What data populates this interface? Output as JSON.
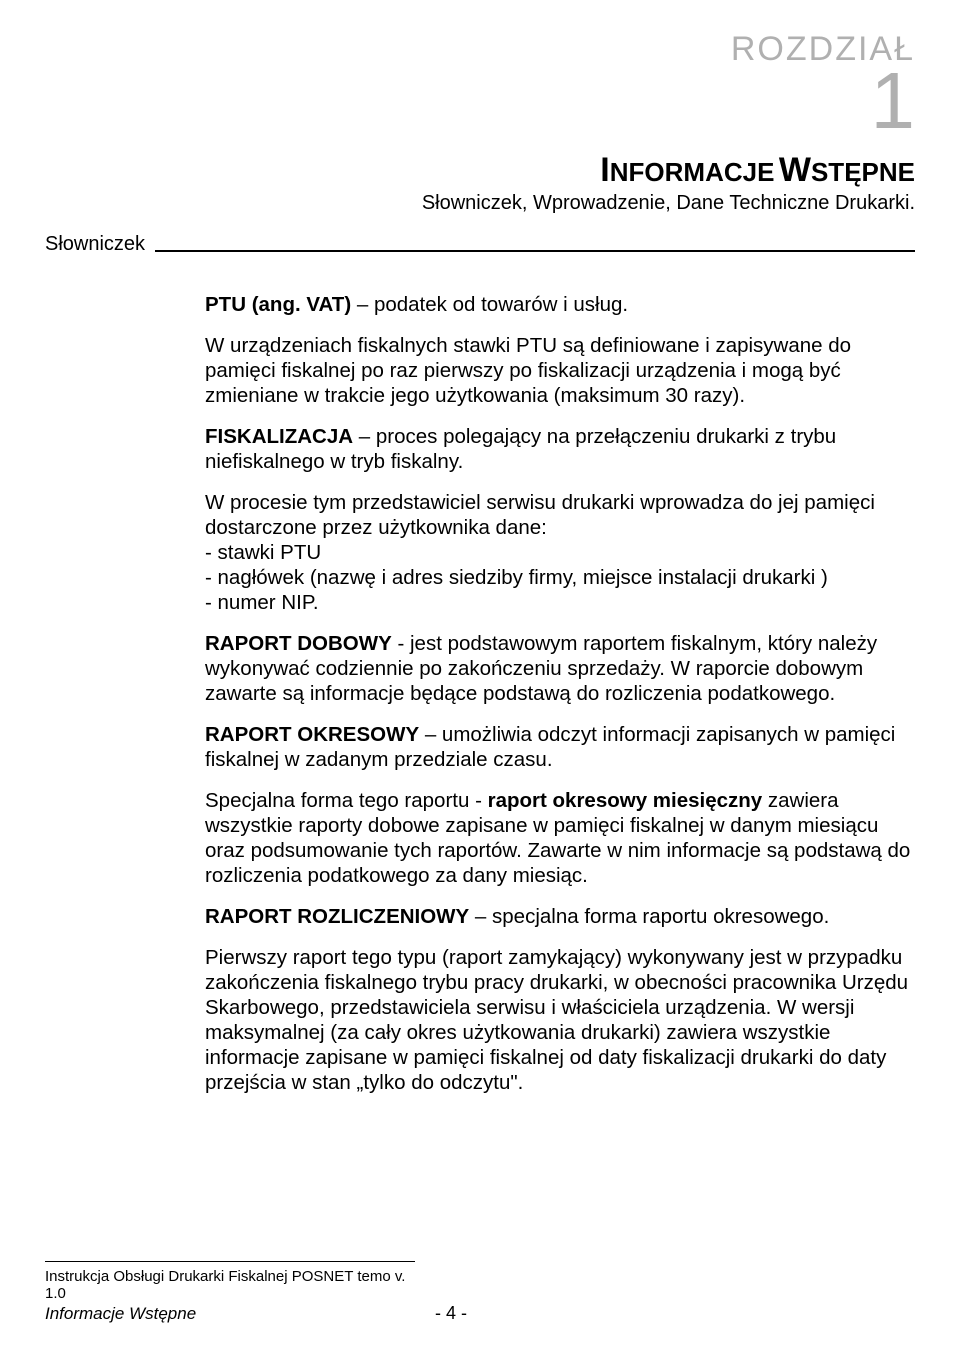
{
  "header": {
    "label": "ROZDZIAŁ",
    "number": "1",
    "title_first_cap": "I",
    "title_rest_1": "NFORMACJE",
    "title_second_cap": "W",
    "title_rest_2": "STĘPNE",
    "subtitle": "Słowniczek, Wprowadzenie, Dane Techniczne Drukarki."
  },
  "section": {
    "label": "Słowniczek"
  },
  "colors": {
    "header_gray": "#b0b0b0",
    "text": "#000000",
    "background": "#ffffff"
  },
  "paragraphs": {
    "p1_bold": "PTU (ang. VAT)",
    "p1_rest": " – podatek od towarów i usług.",
    "p2": "W urządzeniach fiskalnych stawki PTU są definiowane i zapisywane do pamięci fiskalnej po raz pierwszy po fiskalizacji urządzenia i mogą być zmieniane w trakcie jego użytkowania  (maksimum 30 razy).",
    "p3_bold": "FISKALIZACJA",
    "p3_rest": " – proces polegający na przełączeniu drukarki z trybu niefiskalnego w tryb fiskalny.",
    "p4_intro": "W procesie tym przedstawiciel serwisu drukarki wprowadza do jej pamięci dostarczone przez użytkownika dane:",
    "p4_b1": "- stawki PTU",
    "p4_b2": "- nagłówek (nazwę i adres siedziby firmy, miejsce instalacji drukarki )",
    "p4_b3": "- numer NIP.",
    "p5_bold": "RAPORT DOBOWY",
    "p5_rest": " - jest podstawowym  raportem fiskalnym, który należy wykonywać codziennie po zakończeniu sprzedaży. W raporcie dobowym zawarte są informacje będące podstawą do rozliczenia podatkowego.",
    "p6_bold": "RAPORT OKRESOWY",
    "p6_rest": " – umożliwia odczyt informacji zapisanych w pamięci fiskalnej w zadanym przedziale czasu.",
    "p7_pre": "Specjalna forma tego raportu - ",
    "p7_bold": "raport okresowy miesięczny",
    "p7_post": " zawiera wszystkie raporty dobowe zapisane w pamięci fiskalnej w danym miesiącu oraz podsumowanie tych raportów. Zawarte w nim informacje są podstawą do rozliczenia podatkowego za dany miesiąc.",
    "p8_bold": "RAPORT ROZLICZENIOWY",
    "p8_rest": " – specjalna forma raportu okresowego.",
    "p9": "Pierwszy raport tego typu (raport zamykający) wykonywany jest w przypadku zakończenia fiskalnego trybu pracy drukarki, w obecności pracownika Urzędu Skarbowego, przedstawiciela serwisu i właściciela urządzenia. W wersji maksymalnej (za cały okres użytkowania drukarki) zawiera wszystkie informacje zapisane w pamięci fiskalnej od daty fiskalizacji drukarki do daty przejścia w stan „tylko do odczytu\"."
  },
  "footer": {
    "line1": "Instrukcja Obsługi Drukarki Fiskalnej POSNET temo v. 1.0",
    "line2": "Informacje Wstępne",
    "pagenum": "- 4 -"
  }
}
